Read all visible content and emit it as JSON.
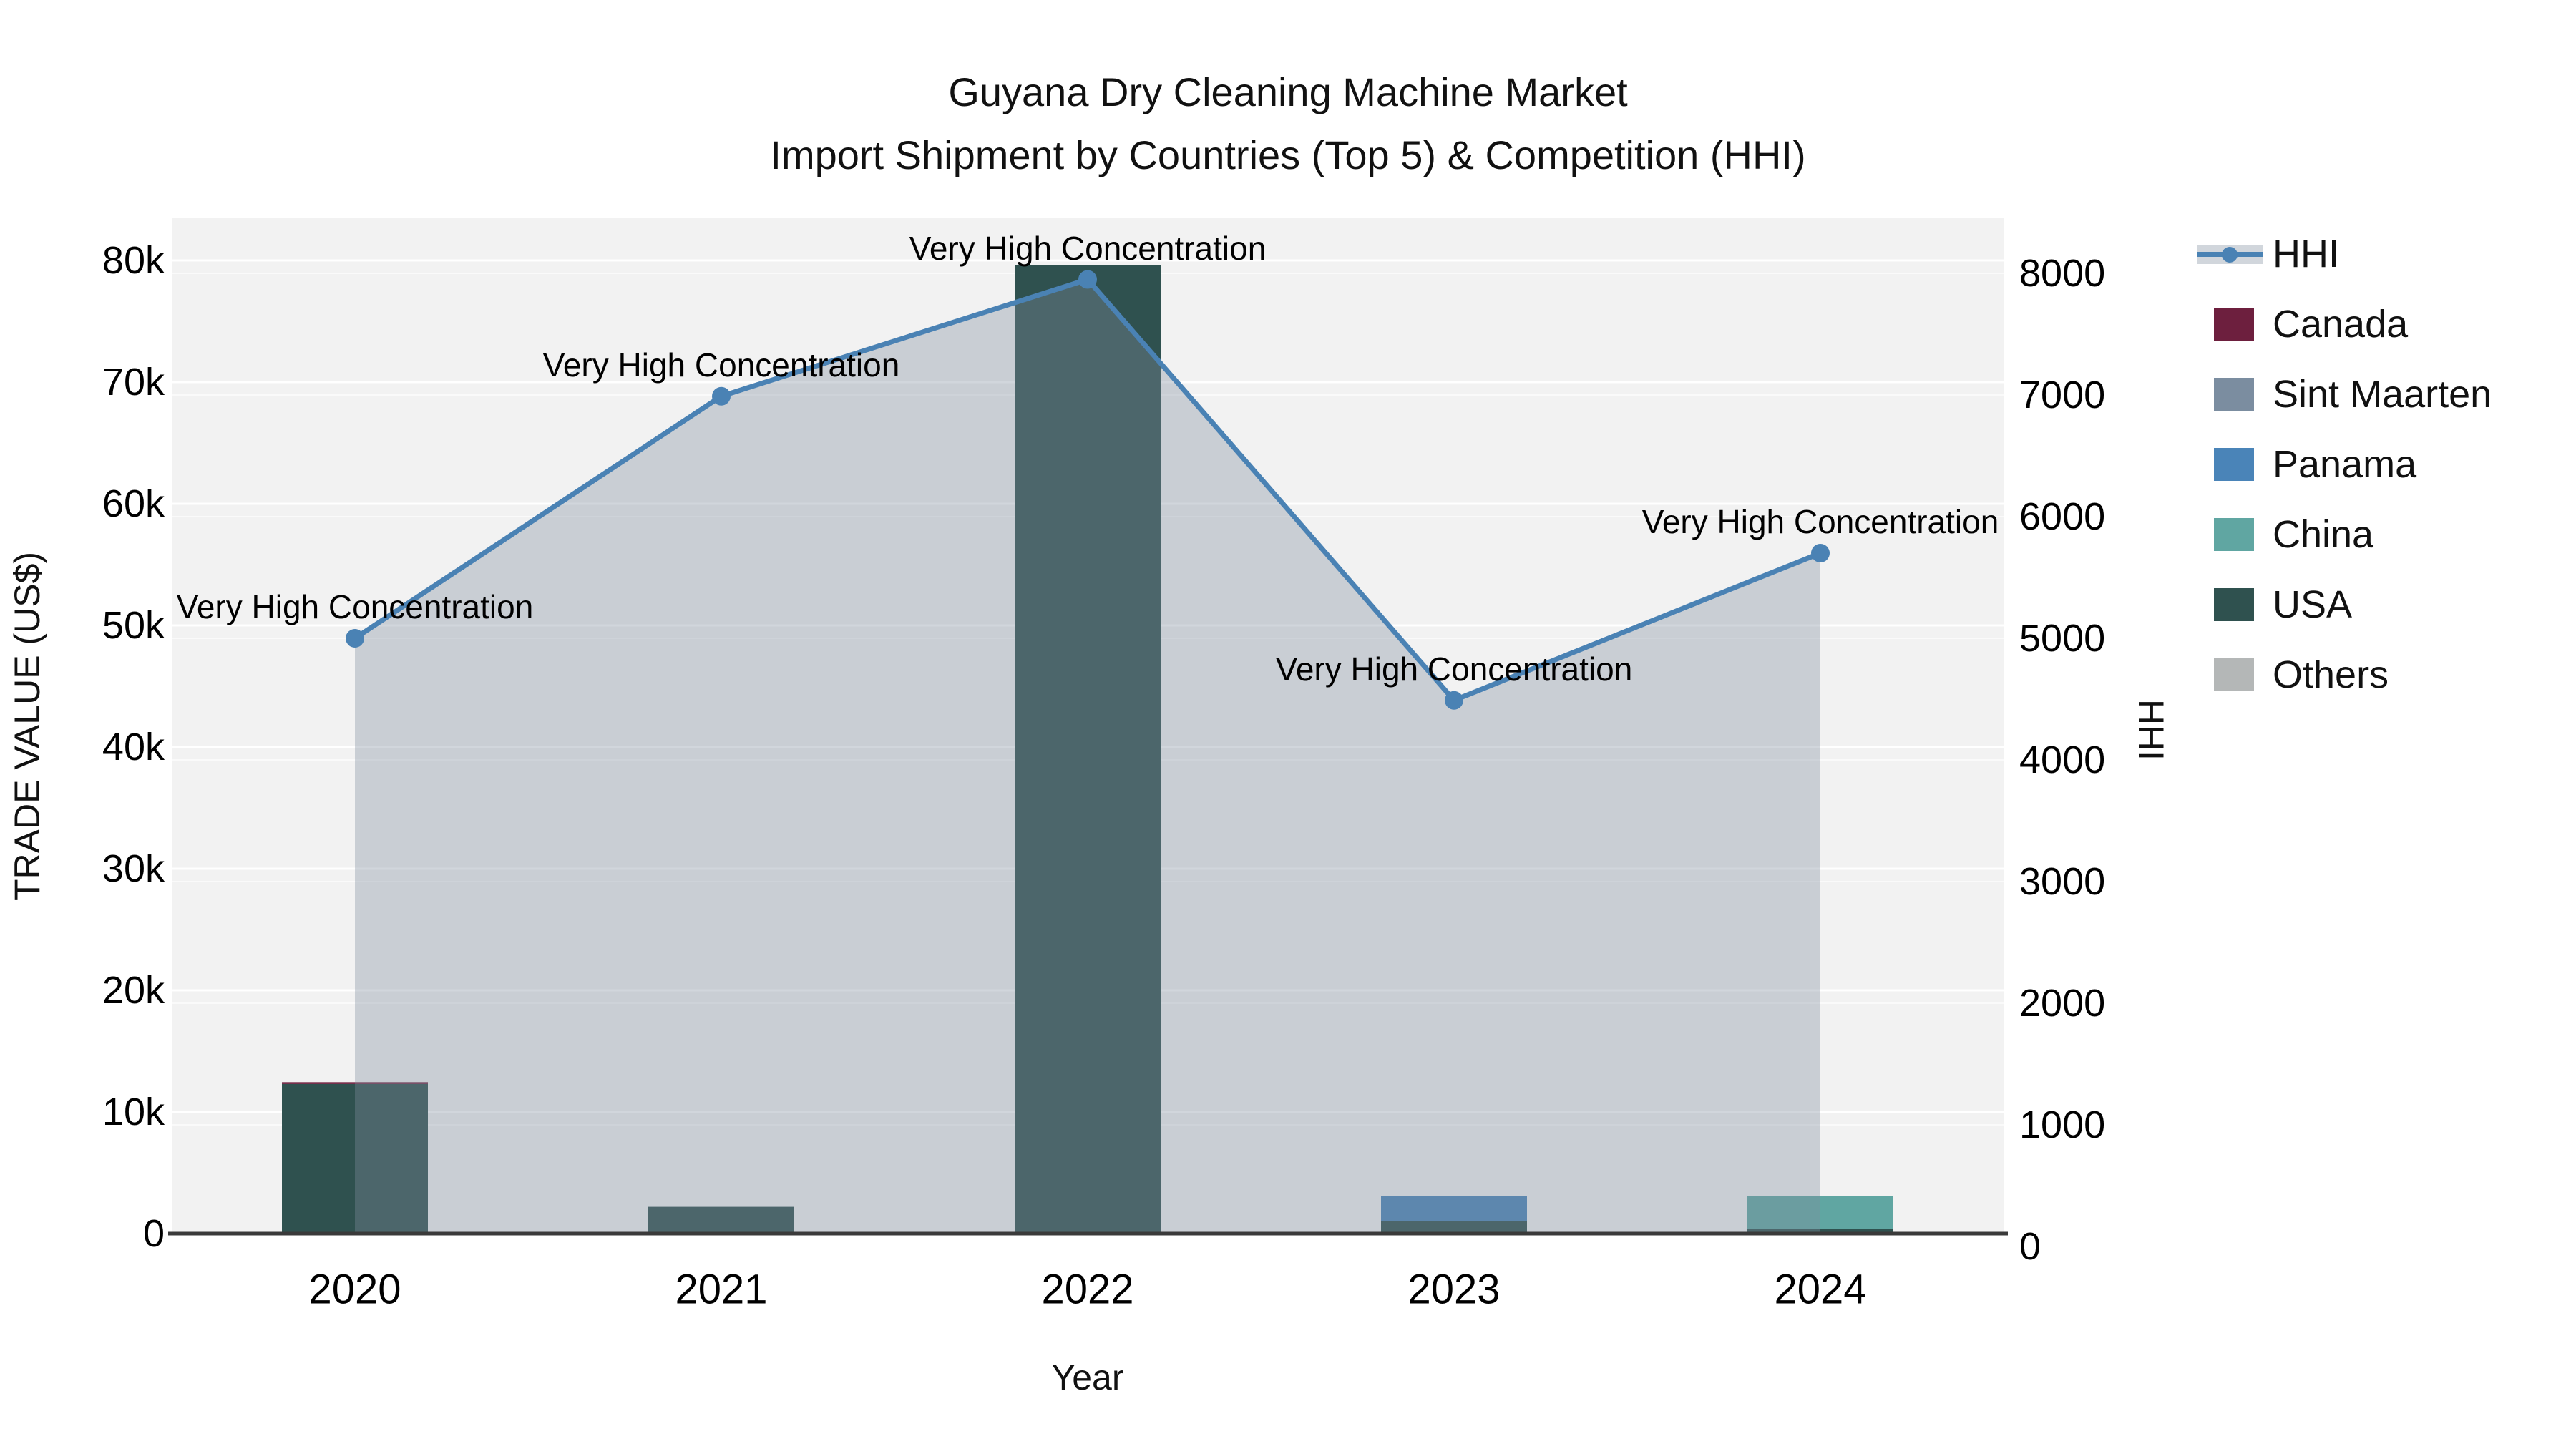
{
  "title": {
    "line1": "Guyana Dry Cleaning Machine Market",
    "line2": "Import Shipment by Countries (Top 5) & Competition (HHI)"
  },
  "axes": {
    "x": {
      "label": "Year",
      "ticks": [
        "2020",
        "2021",
        "2022",
        "2023",
        "2024"
      ]
    },
    "y_left": {
      "label": "TRADE VALUE (US$)",
      "ticks": [
        "0",
        "10k",
        "20k",
        "30k",
        "40k",
        "50k",
        "60k",
        "70k",
        "80k"
      ]
    },
    "y_right": {
      "label": "HHI",
      "ticks": [
        "0",
        "1000",
        "2000",
        "3000",
        "4000",
        "5000",
        "6000",
        "7000",
        "8000"
      ]
    }
  },
  "legend": {
    "items": [
      {
        "label": "HHI",
        "type": "line",
        "color": "#4a82b4"
      },
      {
        "label": "Canada",
        "type": "patch",
        "color": "#6d1f3e"
      },
      {
        "label": "Sint Maarten",
        "type": "patch",
        "color": "#7b8da0"
      },
      {
        "label": "Panama",
        "type": "patch",
        "color": "#4a84b8"
      },
      {
        "label": "China",
        "type": "patch",
        "color": "#60a6a2"
      },
      {
        "label": "USA",
        "type": "patch",
        "color": "#2f514f"
      },
      {
        "label": "Others",
        "type": "patch",
        "color": "#b4b7b7"
      }
    ]
  },
  "colors": {
    "plot_background": "#f2f2f2",
    "grid_primary": "rgba(255,255,255,0.95)",
    "grid_secondary": "rgba(255,255,255,0.6)",
    "axis_line": "#3a3a3a",
    "hhi_line": "#4a82b4",
    "area_fill": "rgba(127,141,158,0.36)"
  },
  "chart_data": {
    "type": "bar+line",
    "categories": [
      "2020",
      "2021",
      "2022",
      "2023",
      "2024"
    ],
    "bar_value_unit": "US$ trade value",
    "series": [
      {
        "name": "Canada",
        "color": "#6d1f3e",
        "values": [
          150,
          0,
          0,
          0,
          0
        ]
      },
      {
        "name": "Sint Maarten",
        "color": "#7b8da0",
        "values": [
          0,
          0,
          0,
          0,
          0
        ]
      },
      {
        "name": "Panama",
        "color": "#4a84b8",
        "values": [
          0,
          0,
          0,
          2050,
          0
        ]
      },
      {
        "name": "China",
        "color": "#60a6a2",
        "values": [
          0,
          0,
          0,
          0,
          2700
        ]
      },
      {
        "name": "USA",
        "color": "#2f514f",
        "values": [
          12300,
          2200,
          79600,
          1050,
          400
        ]
      },
      {
        "name": "Others",
        "color": "#b4b7b7",
        "values": [
          0,
          0,
          0,
          0,
          0
        ]
      }
    ],
    "stack_order": [
      "USA",
      "China",
      "Panama",
      "Sint Maarten",
      "Canada",
      "Others"
    ],
    "line_series": {
      "name": "HHI",
      "axis": "right",
      "values": [
        5000,
        6990,
        7950,
        4490,
        5700
      ],
      "marker": "circle",
      "area_fill": true
    },
    "annotations": [
      {
        "text": "Very High Concentration",
        "category": "2020"
      },
      {
        "text": "Very High Concentration",
        "category": "2021"
      },
      {
        "text": "Very High Concentration",
        "category": "2022"
      },
      {
        "text": "Very High Concentration",
        "category": "2023"
      },
      {
        "text": "Very High Concentration",
        "category": "2024"
      }
    ],
    "xlabel": "Year",
    "ylabel_left": "TRADE VALUE (US$)",
    "ylabel_right": "HHI",
    "ylim_left": [
      0,
      83500
    ],
    "ylim_right": [
      0,
      8350
    ],
    "grid": true,
    "legend_position": "right-top"
  }
}
